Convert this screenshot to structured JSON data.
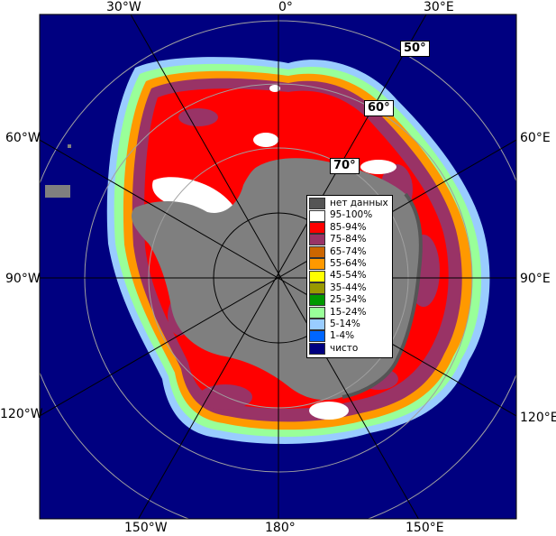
{
  "map": {
    "longitude_labels": {
      "w30": "30°W",
      "zero": "0°",
      "e30": "30°E",
      "w60": "60°W",
      "e60": "60°E",
      "w90": "90°W",
      "e90": "90°E",
      "w120": "120°W",
      "e120": "120°E",
      "w150": "150°W",
      "d180": "180°",
      "e150": "150°E"
    },
    "latitude_labels": {
      "l50": "50°",
      "l60": "60°",
      "l70": "70°"
    },
    "colors": {
      "ocean": "#000080",
      "land": "#7f7f7f",
      "no_data": "#555555",
      "frame": "#000000",
      "graticule": "#a0a0a0"
    },
    "legend": [
      {
        "label": "нет данных",
        "color": "#555555"
      },
      {
        "label": "95-100%",
        "color": "#ffffff"
      },
      {
        "label": "85-94%",
        "color": "#ff0000"
      },
      {
        "label": "75-84%",
        "color": "#993366"
      },
      {
        "label": "65-74%",
        "color": "#cc6600"
      },
      {
        "label": "55-64%",
        "color": "#ff9900"
      },
      {
        "label": "45-54%",
        "color": "#ffff00"
      },
      {
        "label": "35-44%",
        "color": "#999900"
      },
      {
        "label": "25-34%",
        "color": "#009900"
      },
      {
        "label": "15-24%",
        "color": "#99ff99"
      },
      {
        "label": "5-14%",
        "color": "#99ccff"
      },
      {
        "label": "1-4%",
        "color": "#0066ff"
      },
      {
        "label": "чисто",
        "color": "#000080"
      }
    ]
  }
}
